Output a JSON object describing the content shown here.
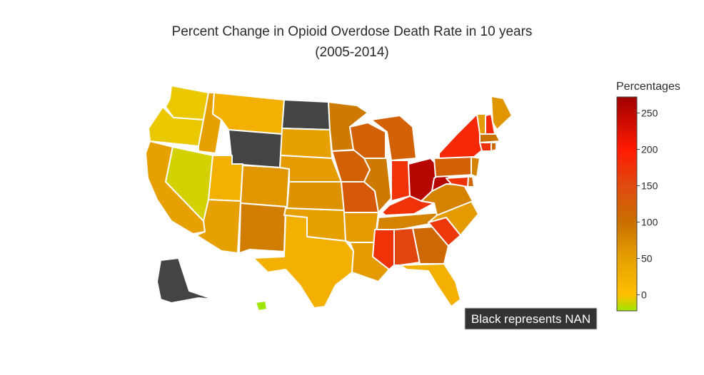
{
  "chart_data": {
    "type": "choropleth",
    "title_line1": "Percent Change in Opioid Overdose Death Rate in 10 years",
    "title_line2": "(2005-2014)",
    "colorbar": {
      "title": "Percentages",
      "ticks": [
        "0",
        "50",
        "100",
        "150",
        "200",
        "250"
      ],
      "range": [
        -22,
        272
      ],
      "colorscale": [
        "#9ee600",
        "#ffbf00",
        "#e6a000",
        "#c87000",
        "#e04a10",
        "#ff1a00",
        "#a00000"
      ]
    },
    "note": "Black represents NAN",
    "nan_color": "#444444",
    "regions": [
      {
        "id": "WA",
        "value": -5
      },
      {
        "id": "OR",
        "value": -5
      },
      {
        "id": "CA",
        "value": 50
      },
      {
        "id": "NV",
        "value": -10
      },
      {
        "id": "ID",
        "value": 50
      },
      {
        "id": "MT",
        "value": 25
      },
      {
        "id": "WY",
        "value": null
      },
      {
        "id": "UT",
        "value": 25
      },
      {
        "id": "AZ",
        "value": 50
      },
      {
        "id": "CO",
        "value": 60
      },
      {
        "id": "NM",
        "value": 85
      },
      {
        "id": "ND",
        "value": null
      },
      {
        "id": "SD",
        "value": 50
      },
      {
        "id": "NE",
        "value": 55
      },
      {
        "id": "KS",
        "value": 65
      },
      {
        "id": "OK",
        "value": 50
      },
      {
        "id": "TX",
        "value": 25
      },
      {
        "id": "MN",
        "value": 90
      },
      {
        "id": "IA",
        "value": 120
      },
      {
        "id": "MO",
        "value": 130
      },
      {
        "id": "AR",
        "value": 55
      },
      {
        "id": "LA",
        "value": 55
      },
      {
        "id": "WI",
        "value": 120
      },
      {
        "id": "IL",
        "value": 90
      },
      {
        "id": "MI",
        "value": 120
      },
      {
        "id": "IN",
        "value": 175
      },
      {
        "id": "OH",
        "value": 255
      },
      {
        "id": "KY",
        "value": 175
      },
      {
        "id": "TN",
        "value": 80
      },
      {
        "id": "MS",
        "value": 175
      },
      {
        "id": "AL",
        "value": 155
      },
      {
        "id": "GA",
        "value": 110
      },
      {
        "id": "FL",
        "value": 25
      },
      {
        "id": "SC",
        "value": 170
      },
      {
        "id": "NC",
        "value": 55
      },
      {
        "id": "VA",
        "value": 80
      },
      {
        "id": "WV",
        "value": 255
      },
      {
        "id": "PA",
        "value": 120
      },
      {
        "id": "NY",
        "value": 185
      },
      {
        "id": "VT",
        "value": 55
      },
      {
        "id": "NH",
        "value": 185
      },
      {
        "id": "ME",
        "value": 60
      },
      {
        "id": "MA",
        "value": 100
      },
      {
        "id": "CT",
        "value": 175
      },
      {
        "id": "RI",
        "value": 110
      },
      {
        "id": "NJ",
        "value": 80
      },
      {
        "id": "DE",
        "value": 110
      },
      {
        "id": "MD",
        "value": 175
      },
      {
        "id": "AK",
        "value": null
      },
      {
        "id": "HI",
        "value": -22
      }
    ]
  }
}
